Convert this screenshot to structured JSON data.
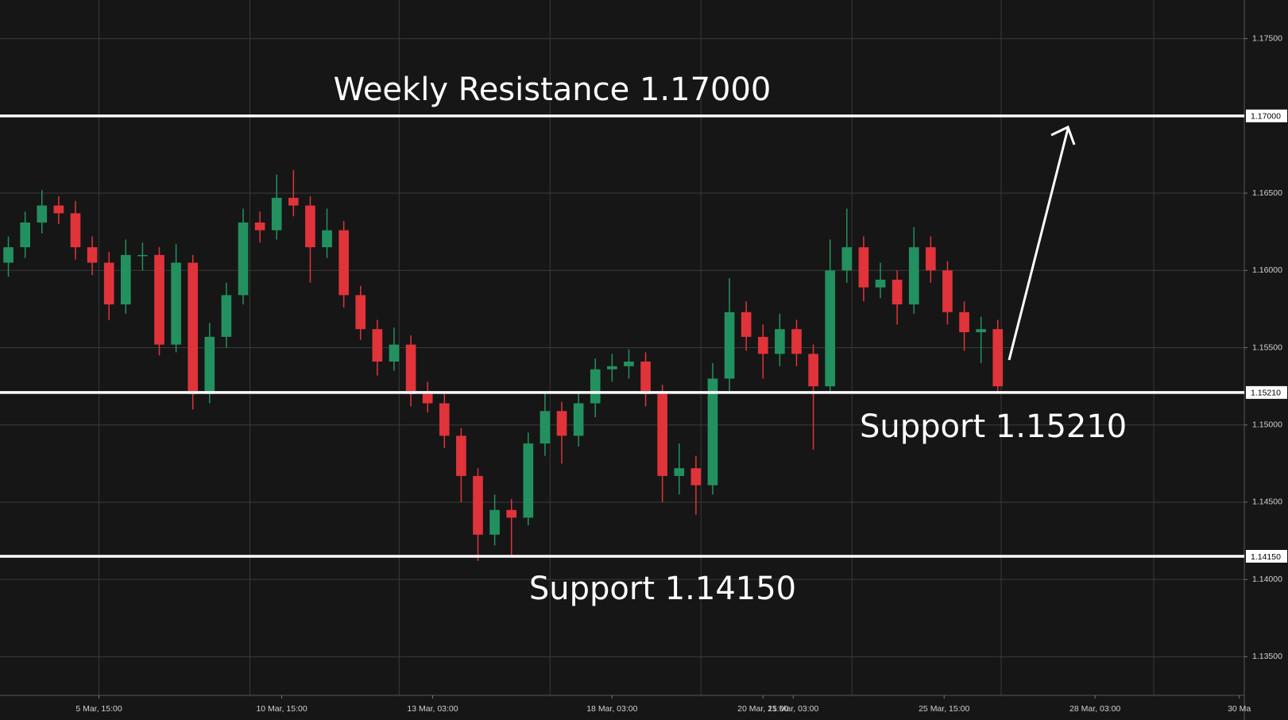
{
  "chart_data": {
    "type": "candlestick",
    "series": {
      "open": [
        1.1605,
        1.1615,
        1.1631,
        1.1642,
        1.1637,
        1.1615,
        1.1605,
        1.1578,
        1.161,
        1.161,
        1.1552,
        1.1605,
        1.152,
        1.1557,
        1.1584,
        1.1631,
        1.1626,
        1.1647,
        1.1642,
        1.1615,
        1.1626,
        1.1584,
        1.1562,
        1.1541,
        1.1552,
        1.152,
        1.1514,
        1.1493,
        1.1467,
        1.1429,
        1.1445,
        1.144,
        1.1488,
        1.1509,
        1.1493,
        1.1514,
        1.1536,
        1.1538,
        1.1541,
        1.152,
        1.1467,
        1.1472,
        1.1461,
        1.153,
        1.1573,
        1.1557,
        1.1546,
        1.1562,
        1.1546,
        1.1525,
        1.16,
        1.1615,
        1.1589,
        1.1594,
        1.1578,
        1.1615,
        1.16,
        1.1573,
        1.156,
        1.1562
      ],
      "high": [
        1.1622,
        1.1638,
        1.1652,
        1.1648,
        1.1645,
        1.1622,
        1.1612,
        1.162,
        1.1618,
        1.1615,
        1.1617,
        1.161,
        1.1566,
        1.1592,
        1.164,
        1.1638,
        1.1662,
        1.1665,
        1.1648,
        1.164,
        1.1632,
        1.159,
        1.1568,
        1.1563,
        1.1558,
        1.1528,
        1.152,
        1.1498,
        1.1472,
        1.1455,
        1.1452,
        1.1495,
        1.1521,
        1.1515,
        1.1522,
        1.1543,
        1.1546,
        1.1549,
        1.1547,
        1.1526,
        1.1488,
        1.148,
        1.154,
        1.1595,
        1.158,
        1.1565,
        1.1572,
        1.1568,
        1.1552,
        1.162,
        1.164,
        1.1622,
        1.1605,
        1.16,
        1.1628,
        1.1622,
        1.1606,
        1.158,
        1.157,
        1.1568
      ],
      "low": [
        1.1596,
        1.1608,
        1.1624,
        1.163,
        1.1607,
        1.1597,
        1.1568,
        1.1572,
        1.16,
        1.1545,
        1.1547,
        1.151,
        1.1514,
        1.155,
        1.1578,
        1.1618,
        1.162,
        1.1635,
        1.1592,
        1.1608,
        1.1576,
        1.1555,
        1.1532,
        1.1535,
        1.1512,
        1.1508,
        1.1485,
        1.145,
        1.1412,
        1.1422,
        1.1415,
        1.1435,
        1.148,
        1.1475,
        1.1486,
        1.1505,
        1.1528,
        1.153,
        1.1512,
        1.145,
        1.1455,
        1.1442,
        1.1455,
        1.1522,
        1.1548,
        1.153,
        1.1538,
        1.1538,
        1.1484,
        1.152,
        1.1592,
        1.158,
        1.1582,
        1.1565,
        1.1572,
        1.1592,
        1.1565,
        1.1548,
        1.154,
        1.152
      ],
      "close": [
        1.1615,
        1.1631,
        1.1642,
        1.1637,
        1.1615,
        1.1605,
        1.1578,
        1.161,
        1.161,
        1.1552,
        1.1605,
        1.152,
        1.1557,
        1.1584,
        1.1631,
        1.1626,
        1.1647,
        1.1642,
        1.1615,
        1.1626,
        1.1584,
        1.1562,
        1.1541,
        1.1552,
        1.152,
        1.1514,
        1.1493,
        1.1467,
        1.1429,
        1.1445,
        1.144,
        1.1488,
        1.1509,
        1.1493,
        1.1514,
        1.1536,
        1.1538,
        1.1541,
        1.152,
        1.1467,
        1.1472,
        1.1461,
        1.153,
        1.1573,
        1.1557,
        1.1546,
        1.1562,
        1.1546,
        1.1525,
        1.16,
        1.1615,
        1.1589,
        1.1594,
        1.1578,
        1.1615,
        1.16,
        1.1573,
        1.156,
        1.1562,
        1.1525
      ]
    },
    "up_color": "#22915f",
    "down_color": "#e0333a",
    "xlim": [
      0,
      74.2
    ],
    "xticks": [
      {
        "value": 5.9,
        "label": "5 Mar, 15:00"
      },
      {
        "value": 16.8,
        "label": "10 Mar, 15:00"
      },
      {
        "value": 25.8,
        "label": "13 Mar, 03:00"
      },
      {
        "value": 36.5,
        "label": "18 Mar, 03:00"
      },
      {
        "value": 45.5,
        "label": "20 Mar, 15:00"
      },
      {
        "value": 47.3,
        "label": "21 Mar, 03:00"
      },
      {
        "value": 56.3,
        "label": "25 Mar, 15:00"
      },
      {
        "value": 65.3,
        "label": "28 Mar, 03:00"
      },
      {
        "value": 73.9,
        "label": "30 Ma"
      }
    ],
    "xgrid": [
      5.9,
      14.9,
      23.8,
      32.8,
      41.8,
      50.8,
      59.7,
      68.8
    ],
    "ylim": [
      1.1325,
      1.1775
    ],
    "yticks": [
      {
        "value": 1.135,
        "label": "1.13500"
      },
      {
        "value": 1.14,
        "label": "1.14000"
      },
      {
        "value": 1.145,
        "label": "1.14500"
      },
      {
        "value": 1.15,
        "label": "1.15000"
      },
      {
        "value": 1.155,
        "label": "1.15500"
      },
      {
        "value": 1.16,
        "label": "1.16000"
      },
      {
        "value": 1.165,
        "label": "1.16500"
      },
      {
        "value": 1.175,
        "label": "1.17500"
      }
    ],
    "grid": true,
    "levels": [
      {
        "value": 1.17,
        "label": "1.17000",
        "annotation": "Weekly Resistance 1.17000"
      },
      {
        "value": 1.1521,
        "label": "1.15210",
        "annotation": "Support 1.15210"
      },
      {
        "value": 1.1415,
        "label": "1.14150",
        "annotation": "Support 1.14150"
      }
    ]
  }
}
